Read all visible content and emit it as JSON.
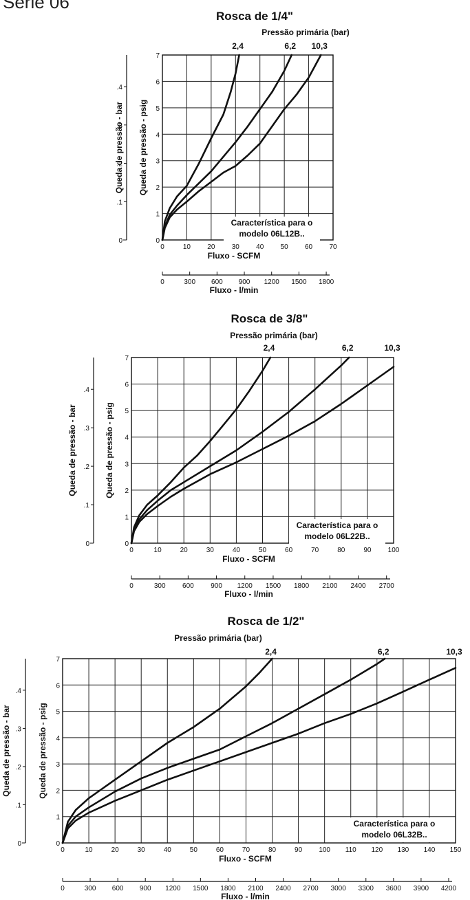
{
  "page": {
    "heading": "Serie 06"
  },
  "chart_data": [
    {
      "type": "line",
      "title": "Rosca de 1/4\"",
      "legend_title": "Pressão primária (bar)",
      "note": [
        "Característica para o",
        "modelo 06L12B.."
      ],
      "xlabel": "Fluxo - SCFM",
      "xlim": [
        0,
        70
      ],
      "x_ticks": [
        0,
        10,
        20,
        30,
        40,
        50,
        60,
        70
      ],
      "x2label": "Fluxo - l/min",
      "x2_ticks": [
        "0",
        "300",
        "600",
        "900",
        "1200",
        "1500",
        "1800"
      ],
      "ylabel": "Queda de pressão - psig",
      "ylim": [
        0,
        7
      ],
      "y_ticks": [
        0,
        1,
        2,
        3,
        4,
        5,
        6,
        7
      ],
      "y2label": "Queda de pressão - bar",
      "y2_ticks": [
        "0",
        ".1",
        ".2",
        ".3",
        ".4"
      ],
      "series": [
        {
          "name": "2,4",
          "x": [
            0,
            1,
            3,
            6,
            10,
            15,
            20,
            25,
            28,
            30,
            31.5
          ],
          "y": [
            0,
            0.7,
            1.2,
            1.65,
            2.05,
            2.9,
            3.85,
            4.75,
            5.6,
            6.3,
            7
          ]
        },
        {
          "name": "6,2",
          "x": [
            0,
            1,
            3,
            6,
            10,
            15,
            20,
            25,
            30,
            35,
            40,
            45,
            50,
            53
          ],
          "y": [
            0,
            0.5,
            0.95,
            1.3,
            1.7,
            2.15,
            2.6,
            3.15,
            3.7,
            4.3,
            4.95,
            5.6,
            6.4,
            7
          ]
        },
        {
          "name": "10,3",
          "x": [
            0,
            1,
            3,
            6,
            10,
            15,
            20,
            25,
            30,
            35,
            40,
            45,
            50,
            55,
            60,
            65
          ],
          "y": [
            0,
            0.45,
            0.85,
            1.15,
            1.45,
            1.85,
            2.2,
            2.55,
            2.8,
            3.2,
            3.65,
            4.3,
            4.95,
            5.5,
            6.15,
            7
          ]
        }
      ]
    },
    {
      "type": "line",
      "title": "Rosca de 3/8\"",
      "legend_title": "Pressão primária (bar)",
      "note": [
        "Característica para o",
        "modelo 06L22B.."
      ],
      "xlabel": "Fluxo - SCFM",
      "xlim": [
        0,
        100
      ],
      "x_ticks": [
        0,
        10,
        20,
        30,
        40,
        50,
        60,
        70,
        80,
        90,
        100
      ],
      "x2label": "Fluxo - l/min",
      "x2_ticks": [
        "0",
        "300",
        "600",
        "900",
        "1200",
        "1500",
        "1800",
        "2100",
        "2400",
        "2700"
      ],
      "ylabel": "Queda de pressão - psig",
      "ylim": [
        0,
        7
      ],
      "y_ticks": [
        0,
        1,
        2,
        3,
        4,
        5,
        6,
        7
      ],
      "y2label": "Queda de pressão - bar",
      "y2_ticks": [
        "0",
        ".1",
        ".2",
        ".3",
        ".4"
      ],
      "series": [
        {
          "name": "2,4",
          "x": [
            0,
            1,
            3,
            6,
            10,
            15,
            20,
            25,
            30,
            35,
            40,
            45,
            50,
            53
          ],
          "y": [
            0,
            0.6,
            1.05,
            1.45,
            1.8,
            2.3,
            2.85,
            3.3,
            3.85,
            4.45,
            5.05,
            5.75,
            6.5,
            7
          ]
        },
        {
          "name": "6,2",
          "x": [
            0,
            1,
            3,
            6,
            10,
            15,
            20,
            30,
            40,
            50,
            60,
            70,
            80,
            83
          ],
          "y": [
            0,
            0.5,
            0.9,
            1.25,
            1.6,
            2.0,
            2.3,
            2.9,
            3.5,
            4.2,
            4.95,
            5.8,
            6.7,
            7
          ]
        },
        {
          "name": "10,3",
          "x": [
            0,
            1,
            3,
            6,
            10,
            15,
            20,
            30,
            40,
            50,
            60,
            70,
            80,
            90,
            100
          ],
          "y": [
            0,
            0.45,
            0.8,
            1.1,
            1.4,
            1.75,
            2.05,
            2.6,
            3.05,
            3.55,
            4.05,
            4.6,
            5.25,
            5.95,
            6.65
          ]
        }
      ]
    },
    {
      "type": "line",
      "title": "Rosca de 1/2\"",
      "legend_title": "Pressão primária (bar)",
      "note": [
        "Característica para o",
        "modelo 06L32B.."
      ],
      "xlabel": "Fluxo - SCFM",
      "xlim": [
        0,
        150
      ],
      "x_ticks": [
        0,
        10,
        20,
        30,
        40,
        50,
        60,
        70,
        80,
        90,
        100,
        110,
        120,
        130,
        140,
        150
      ],
      "x2label": "Fluxo - l/min",
      "x2_ticks": [
        "0",
        "300",
        "600",
        "900",
        "1200",
        "1500",
        "1800",
        "2100",
        "2400",
        "2700",
        "3000",
        "3300",
        "3600",
        "3900",
        "4200"
      ],
      "ylabel": "Queda de pressão - psig",
      "ylim": [
        0,
        7
      ],
      "y_ticks": [
        0,
        1,
        2,
        3,
        4,
        5,
        6,
        7
      ],
      "y2label": "Queda de pressão - bar",
      "y2_ticks": [
        "0",
        ".1",
        ".2",
        ".3",
        ".4"
      ],
      "series": [
        {
          "name": "2,4",
          "x": [
            0,
            2,
            5,
            10,
            15,
            20,
            30,
            40,
            50,
            60,
            70,
            75,
            80
          ],
          "y": [
            0,
            0.8,
            1.25,
            1.7,
            2.05,
            2.4,
            3.1,
            3.8,
            4.4,
            5.1,
            5.95,
            6.45,
            7
          ]
        },
        {
          "name": "6,2",
          "x": [
            0,
            2,
            5,
            10,
            20,
            30,
            40,
            50,
            60,
            70,
            80,
            90,
            100,
            110,
            120,
            123
          ],
          "y": [
            0,
            0.65,
            1.0,
            1.35,
            1.95,
            2.45,
            2.85,
            3.2,
            3.55,
            4.05,
            4.55,
            5.1,
            5.65,
            6.2,
            6.8,
            7
          ]
        },
        {
          "name": "10,3",
          "x": [
            0,
            2,
            5,
            10,
            20,
            30,
            40,
            50,
            60,
            70,
            80,
            90,
            100,
            110,
            120,
            130,
            140,
            150
          ],
          "y": [
            0,
            0.55,
            0.85,
            1.15,
            1.6,
            2.0,
            2.4,
            2.75,
            3.1,
            3.45,
            3.8,
            4.15,
            4.55,
            4.9,
            5.3,
            5.75,
            6.2,
            6.65
          ]
        }
      ]
    }
  ]
}
